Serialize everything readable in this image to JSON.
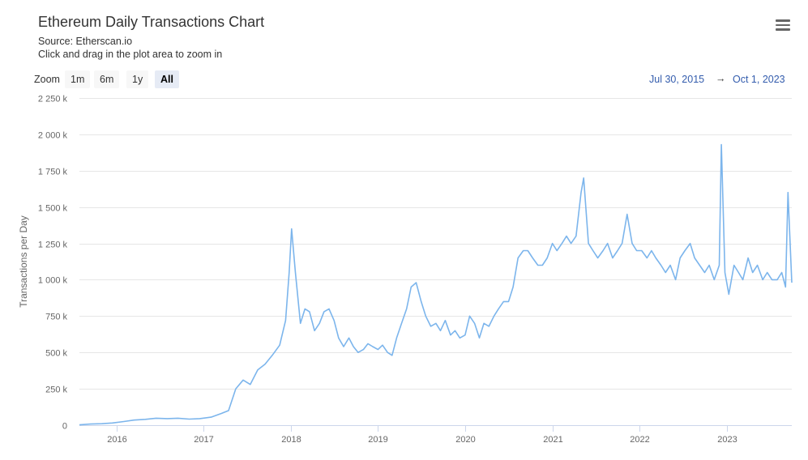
{
  "header": {
    "title": "Ethereum Daily Transactions Chart",
    "source": "Source: Etherscan.io",
    "hint": "Click and drag in the plot area to zoom in",
    "menu_icon": "hamburger-menu-icon"
  },
  "zoom": {
    "label": "Zoom",
    "buttons": [
      {
        "label": "1m",
        "active": false
      },
      {
        "label": "6m",
        "active": false
      },
      {
        "label": "1y",
        "active": false
      },
      {
        "label": "All",
        "active": true
      }
    ]
  },
  "range": {
    "from": "Jul 30, 2015",
    "arrow": "→",
    "to": "Oct 1, 2023"
  },
  "chart_data": {
    "type": "line",
    "title": "Ethereum Daily Transactions Chart",
    "subtitle": "Source: Etherscan.io",
    "xlabel": "",
    "ylabel": "Transactions per Day",
    "grid": true,
    "color": "#7cb5ec",
    "ylim": [
      0,
      2250000
    ],
    "xlim": [
      "2015-07-30",
      "2023-10-01"
    ],
    "yticks": [
      0,
      250000,
      500000,
      750000,
      1000000,
      1250000,
      1500000,
      1750000,
      2000000,
      2250000
    ],
    "ytick_labels": [
      "0",
      "250 k",
      "500 k",
      "750 k",
      "1 000 k",
      "1 250 k",
      "1 500 k",
      "1 750 k",
      "2 000 k",
      "2 250 k"
    ],
    "xticks": [
      "2016-01-01",
      "2017-01-01",
      "2018-01-01",
      "2019-01-01",
      "2020-01-01",
      "2021-01-01",
      "2022-01-01",
      "2023-01-01"
    ],
    "xtick_labels": [
      "2016",
      "2017",
      "2018",
      "2019",
      "2020",
      "2021",
      "2022",
      "2023"
    ],
    "series": [
      {
        "x": [
          "2015-07-30",
          "2015-09-15",
          "2015-11-01",
          "2015-12-15",
          "2016-02-01",
          "2016-03-15",
          "2016-05-01",
          "2016-06-15",
          "2016-08-01",
          "2016-09-15",
          "2016-11-01",
          "2016-12-15",
          "2017-02-01",
          "2017-03-15",
          "2017-04-15",
          "2017-05-15",
          "2017-06-15",
          "2017-07-15",
          "2017-08-15",
          "2017-09-15",
          "2017-10-15",
          "2017-11-15",
          "2017-12-10",
          "2017-12-25",
          "2018-01-04",
          "2018-01-20",
          "2018-02-10",
          "2018-03-01",
          "2018-03-20",
          "2018-04-10",
          "2018-05-01",
          "2018-05-20",
          "2018-06-10",
          "2018-07-01",
          "2018-07-20",
          "2018-08-10",
          "2018-09-01",
          "2018-09-20",
          "2018-10-10",
          "2018-11-01",
          "2018-11-20",
          "2018-12-10",
          "2019-01-01",
          "2019-01-20",
          "2019-02-10",
          "2019-03-01",
          "2019-03-20",
          "2019-04-10",
          "2019-05-01",
          "2019-05-20",
          "2019-06-10",
          "2019-07-01",
          "2019-07-20",
          "2019-08-10",
          "2019-09-01",
          "2019-09-20",
          "2019-10-10",
          "2019-11-01",
          "2019-11-20",
          "2019-12-10",
          "2020-01-01",
          "2020-01-20",
          "2020-02-10",
          "2020-03-01",
          "2020-03-20",
          "2020-04-10",
          "2020-05-01",
          "2020-05-20",
          "2020-06-10",
          "2020-07-01",
          "2020-07-20",
          "2020-08-10",
          "2020-09-01",
          "2020-09-20",
          "2020-10-10",
          "2020-11-01",
          "2020-11-20",
          "2020-12-10",
          "2021-01-01",
          "2021-01-20",
          "2021-02-10",
          "2021-03-01",
          "2021-03-20",
          "2021-04-10",
          "2021-05-01",
          "2021-05-12",
          "2021-06-01",
          "2021-06-20",
          "2021-07-10",
          "2021-08-01",
          "2021-08-20",
          "2021-09-10",
          "2021-10-01",
          "2021-10-20",
          "2021-11-10",
          "2021-12-01",
          "2021-12-20",
          "2022-01-10",
          "2022-02-01",
          "2022-02-20",
          "2022-03-10",
          "2022-04-01",
          "2022-04-20",
          "2022-05-10",
          "2022-06-01",
          "2022-06-20",
          "2022-07-10",
          "2022-08-01",
          "2022-08-20",
          "2022-09-10",
          "2022-10-01",
          "2022-10-20",
          "2022-11-10",
          "2022-12-01",
          "2022-12-10",
          "2022-12-25",
          "2023-01-10",
          "2023-02-01",
          "2023-02-20",
          "2023-03-10",
          "2023-04-01",
          "2023-04-20",
          "2023-05-10",
          "2023-06-01",
          "2023-06-20",
          "2023-07-10",
          "2023-08-01",
          "2023-08-20",
          "2023-09-05",
          "2023-09-15",
          "2023-10-01"
        ],
        "y": [
          2000,
          8000,
          10000,
          15000,
          25000,
          35000,
          40000,
          48000,
          45000,
          48000,
          42000,
          45000,
          55000,
          80000,
          100000,
          250000,
          310000,
          280000,
          380000,
          420000,
          480000,
          550000,
          720000,
          1050000,
          1350000,
          1050000,
          700000,
          800000,
          780000,
          650000,
          700000,
          780000,
          800000,
          720000,
          600000,
          540000,
          600000,
          540000,
          500000,
          520000,
          560000,
          540000,
          520000,
          550000,
          500000,
          480000,
          600000,
          700000,
          800000,
          950000,
          980000,
          850000,
          750000,
          680000,
          700000,
          650000,
          720000,
          620000,
          650000,
          600000,
          620000,
          750000,
          700000,
          600000,
          700000,
          680000,
          750000,
          800000,
          850000,
          850000,
          950000,
          1150000,
          1200000,
          1200000,
          1150000,
          1100000,
          1100000,
          1150000,
          1250000,
          1200000,
          1250000,
          1300000,
          1250000,
          1300000,
          1600000,
          1700000,
          1250000,
          1200000,
          1150000,
          1200000,
          1250000,
          1150000,
          1200000,
          1250000,
          1450000,
          1250000,
          1200000,
          1200000,
          1150000,
          1200000,
          1150000,
          1100000,
          1050000,
          1100000,
          1000000,
          1150000,
          1200000,
          1250000,
          1150000,
          1100000,
          1050000,
          1100000,
          1000000,
          1100000,
          1930000,
          1050000,
          900000,
          1100000,
          1050000,
          1000000,
          1150000,
          1050000,
          1100000,
          1000000,
          1050000,
          1000000,
          1000000,
          1050000,
          950000,
          1600000,
          980000
        ]
      }
    ]
  }
}
